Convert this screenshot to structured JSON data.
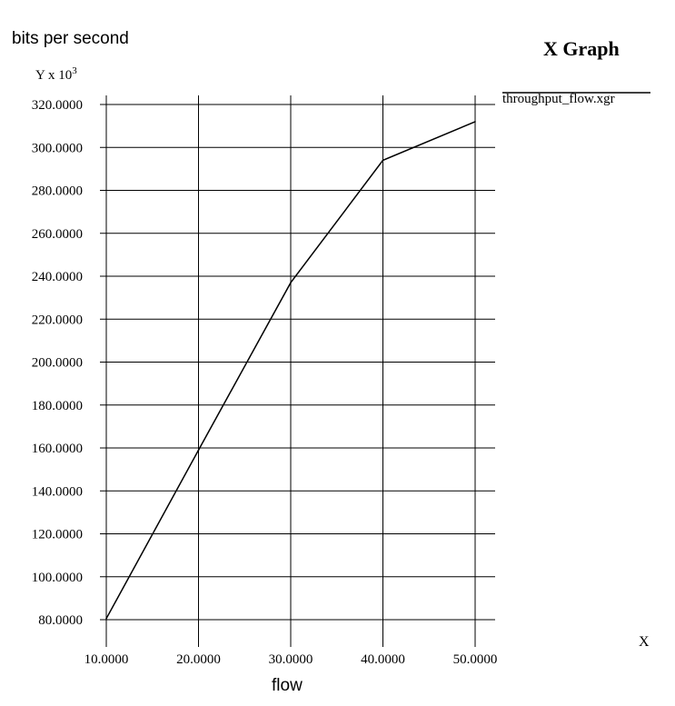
{
  "header": {
    "title": "X Graph",
    "ylabel": "bits per second",
    "yunits_base": "Y x 10",
    "yunits_exp": "3",
    "xaxis_name": "X",
    "xlabel": "flow"
  },
  "legend": {
    "entry": "throughput_flow.xgr"
  },
  "colors": {
    "line": "#000000",
    "grid": "#000000",
    "background": "#ffffff"
  },
  "chart_data": {
    "type": "line",
    "title": "X Graph",
    "xlabel": "flow",
    "ylabel": "bits per second",
    "y_units": "Y x 10^3",
    "x_ticks": [
      "10.0000",
      "20.0000",
      "30.0000",
      "40.0000",
      "50.0000"
    ],
    "y_ticks": [
      "80.0000",
      "100.0000",
      "120.0000",
      "140.0000",
      "160.0000",
      "180.0000",
      "200.0000",
      "220.0000",
      "240.0000",
      "260.0000",
      "280.0000",
      "300.0000",
      "320.0000"
    ],
    "xlim": [
      10,
      50
    ],
    "ylim": [
      80,
      320
    ],
    "grid": true,
    "legend_position": "top-right",
    "series": [
      {
        "name": "throughput_flow.xgr",
        "x": [
          10,
          20,
          30,
          40,
          50
        ],
        "y": [
          80.5,
          159,
          237,
          294,
          312
        ]
      }
    ]
  }
}
